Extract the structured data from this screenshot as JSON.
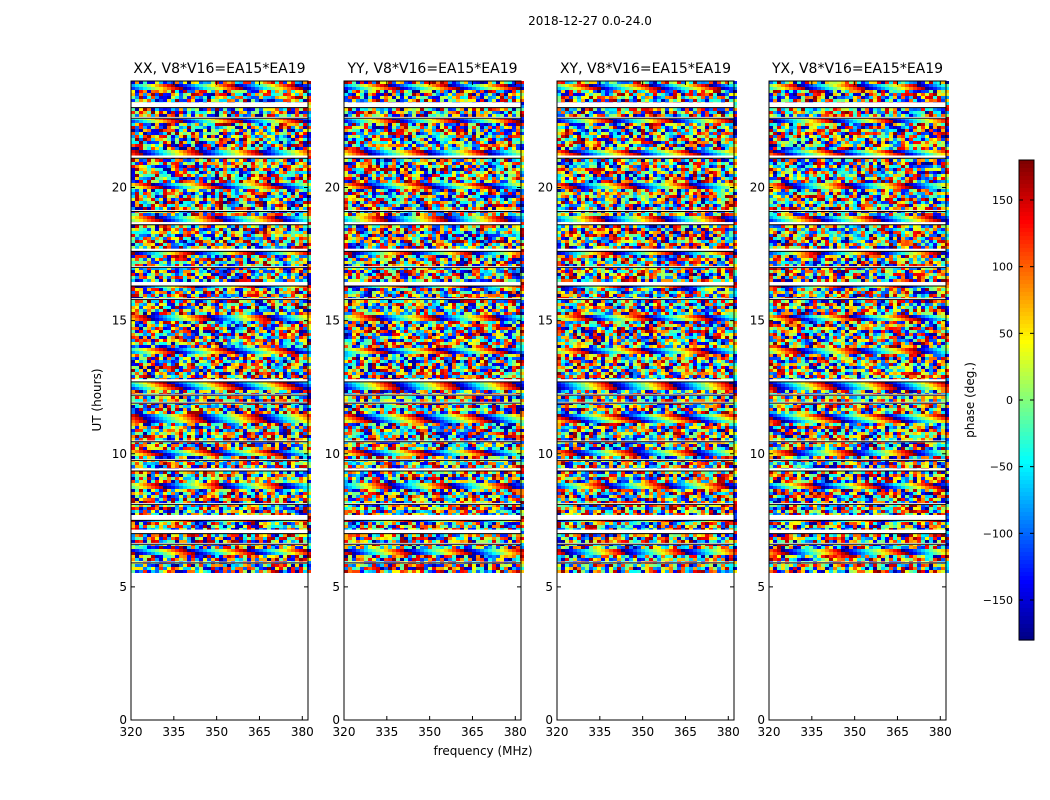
{
  "figure": {
    "suptitle": "2018-12-27 0.0-24.0",
    "shared_xlabel": "frequency (MHz)",
    "shared_ylabel": "UT (hours)"
  },
  "colormap": {
    "name": "jet",
    "stops": [
      "#00007f",
      "#0000ff",
      "#007fff",
      "#00ffff",
      "#7fff7f",
      "#ffff00",
      "#ff7f00",
      "#ff0000",
      "#7f0000"
    ]
  },
  "chart_data": [
    {
      "type": "heatmap",
      "title": "XX, V8*V16=EA15*EA19",
      "xlabel": "frequency (MHz)",
      "ylabel": "UT (hours)",
      "xlim": [
        320,
        382
      ],
      "ylim": [
        0,
        24
      ],
      "xticks": [
        320,
        335,
        350,
        365,
        380
      ],
      "yticks": [
        0,
        5,
        10,
        15,
        20
      ],
      "data_time_range": [
        5.6,
        24.0
      ],
      "cmap": "jet",
      "value": "phase (deg.)"
    },
    {
      "type": "heatmap",
      "title": "YY, V8*V16=EA15*EA19",
      "xlabel": "",
      "ylabel": "",
      "xlim": [
        320,
        382
      ],
      "ylim": [
        0,
        24
      ],
      "xticks": [
        320,
        335,
        350,
        365,
        380
      ],
      "yticks": [
        0,
        5,
        10,
        15,
        20
      ],
      "data_time_range": [
        5.6,
        24.0
      ],
      "cmap": "jet",
      "value": "phase (deg.)"
    },
    {
      "type": "heatmap",
      "title": "XY, V8*V16=EA15*EA19",
      "xlabel": "",
      "ylabel": "",
      "xlim": [
        320,
        382
      ],
      "ylim": [
        0,
        24
      ],
      "xticks": [
        320,
        335,
        350,
        365,
        380
      ],
      "yticks": [
        0,
        5,
        10,
        15,
        20
      ],
      "data_time_range": [
        5.6,
        24.0
      ],
      "cmap": "jet",
      "value": "phase (deg.)"
    },
    {
      "type": "heatmap",
      "title": "YX, V8*V16=EA15*EA19",
      "xlabel": "",
      "ylabel": "",
      "xlim": [
        320,
        382
      ],
      "ylim": [
        0,
        24
      ],
      "xticks": [
        320,
        335,
        350,
        365,
        380
      ],
      "yticks": [
        0,
        5,
        10,
        15,
        20
      ],
      "data_time_range": [
        5.6,
        24.0
      ],
      "cmap": "jet",
      "value": "phase (deg.)"
    },
    {
      "type": "colorbar",
      "label": "phase (deg.)",
      "range": [
        -180,
        180
      ],
      "ticks": [
        -150,
        -100,
        -50,
        0,
        50,
        100,
        150
      ],
      "tick_labels": [
        "−150",
        "−100",
        "−50",
        "0",
        "50",
        "100",
        "150"
      ]
    }
  ],
  "flagged_ut_bands": [
    [
      23.0,
      23.2
    ],
    [
      22.6,
      22.65
    ],
    [
      21.1,
      21.2
    ],
    [
      19.1,
      19.15
    ],
    [
      18.6,
      18.7
    ],
    [
      17.6,
      17.7
    ],
    [
      17.0,
      17.05
    ],
    [
      16.3,
      16.45
    ],
    [
      15.8,
      15.85
    ],
    [
      12.7,
      12.8
    ],
    [
      12.2,
      12.25
    ],
    [
      11.9,
      11.95
    ],
    [
      10.45,
      10.5
    ],
    [
      9.75,
      9.8
    ],
    [
      9.35,
      9.45
    ],
    [
      8.1,
      8.15
    ],
    [
      7.5,
      7.7
    ],
    [
      7.0,
      7.15
    ],
    [
      6.6,
      6.65
    ],
    [
      5.9,
      5.95
    ]
  ]
}
